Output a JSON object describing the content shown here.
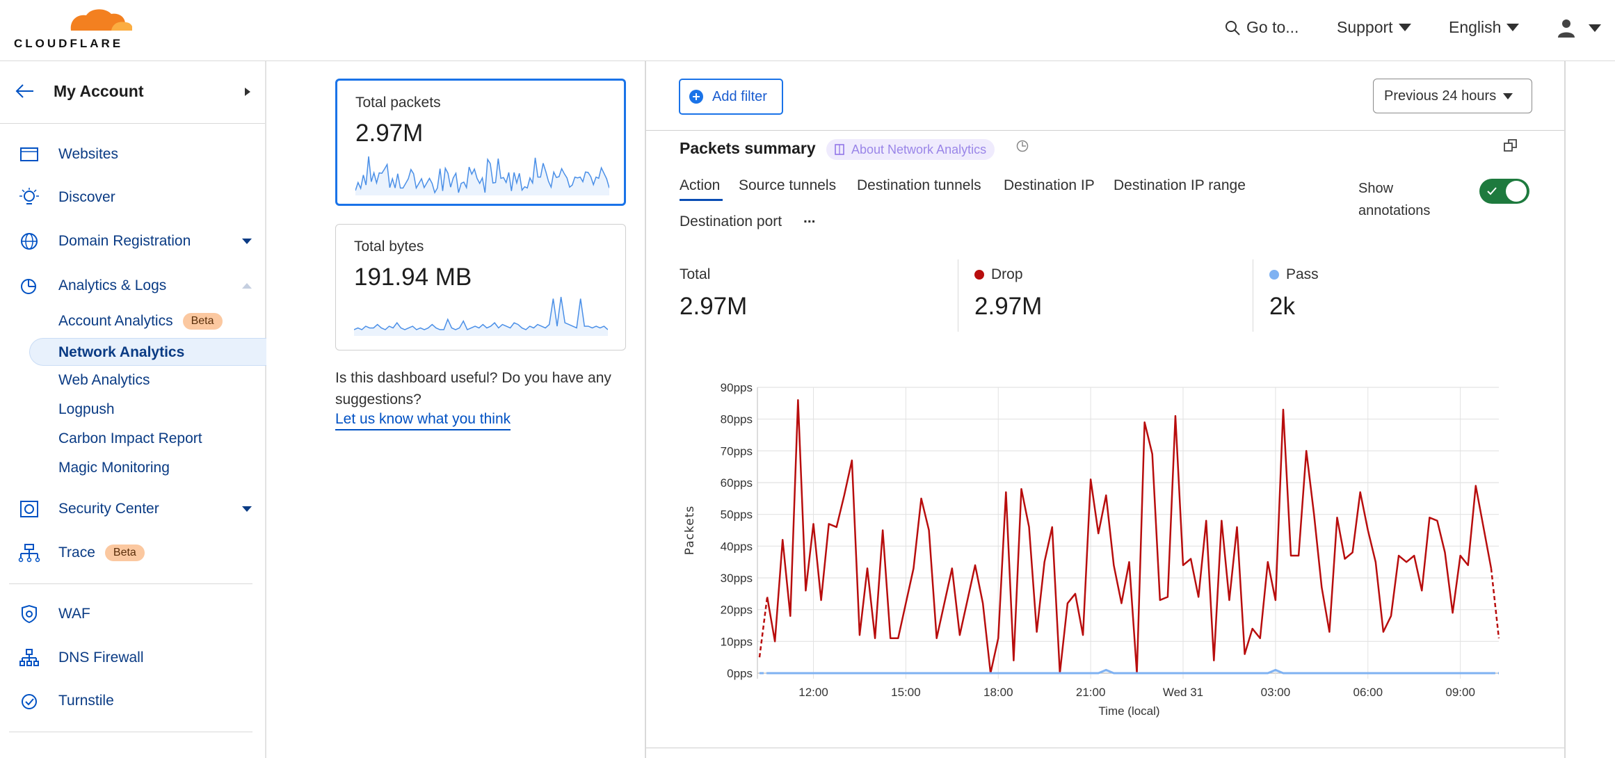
{
  "header": {
    "logo_text": "CLOUDFLARE",
    "goto_label": "Go to...",
    "support_label": "Support",
    "language_label": "English"
  },
  "sidebar": {
    "account_title": "My Account",
    "items": [
      {
        "label": "Websites",
        "icon": "browser-window-icon"
      },
      {
        "label": "Discover",
        "icon": "lightbulb-icon"
      },
      {
        "label": "Domain Registration",
        "icon": "globe-icon"
      },
      {
        "label": "Analytics & Logs",
        "icon": "pie-chart-icon"
      },
      {
        "label": "Security Center",
        "icon": "security-center-icon"
      },
      {
        "label": "Trace",
        "icon": "trace-icon",
        "badge": "Beta"
      },
      {
        "label": "WAF",
        "icon": "shield-gear-icon"
      },
      {
        "label": "DNS Firewall",
        "icon": "network-icon"
      },
      {
        "label": "Turnstile",
        "icon": "turnstile-icon"
      }
    ],
    "analytics_subitems": [
      {
        "label": "Account Analytics",
        "badge": "Beta"
      },
      {
        "label": "Network Analytics",
        "active": true
      },
      {
        "label": "Web Analytics"
      },
      {
        "label": "Logpush"
      },
      {
        "label": "Carbon Impact Report"
      },
      {
        "label": "Magic Monitoring"
      }
    ]
  },
  "cards": {
    "packets": {
      "title": "Total packets",
      "value": "2.97M"
    },
    "bytes": {
      "title": "Total bytes",
      "value": "191.94 MB",
      "sparkline": [
        2,
        3,
        2,
        4,
        3,
        3,
        5,
        3,
        2,
        4,
        3,
        6,
        3,
        2,
        3,
        4,
        2,
        3,
        2,
        3,
        5,
        3,
        2,
        2,
        8,
        3,
        2,
        3,
        7,
        2,
        3,
        4,
        3,
        5,
        3,
        4,
        6,
        3,
        5,
        4,
        3,
        6,
        5,
        3,
        2,
        4,
        3,
        5,
        4,
        3,
        5,
        20,
        4,
        21,
        6,
        5,
        4,
        3,
        20,
        4,
        4,
        3,
        4,
        3,
        4,
        2
      ]
    },
    "feedback_text": "Is this dashboard useful? Do you have any suggestions?",
    "feedback_link": "Let us know what you think"
  },
  "main": {
    "add_filter_label": "Add filter",
    "time_range": "Previous 24 hours",
    "section_title": "Packets summary",
    "about_label": "About Network Analytics",
    "tabs": [
      "Action",
      "Source tunnels",
      "Destination tunnels",
      "Destination IP",
      "Destination IP range",
      "Destination port"
    ],
    "active_tab": "Action",
    "more_label": "...",
    "annotations_label_1": "Show",
    "annotations_label_2": "annotations",
    "annotations_on": true,
    "stats": [
      {
        "label": "Total",
        "value": "2.97M"
      },
      {
        "label": "Drop",
        "value": "2.97M",
        "color": "#b80d0d"
      },
      {
        "label": "Pass",
        "value": "2k",
        "color": "#7fb2f2"
      }
    ]
  },
  "chart_data": {
    "type": "line",
    "xlabel": "Time (local)",
    "ylabel": "Packets",
    "ylim": [
      0,
      90
    ],
    "y_ticks": [
      "0pps",
      "10pps",
      "20pps",
      "30pps",
      "40pps",
      "50pps",
      "60pps",
      "70pps",
      "80pps",
      "90pps"
    ],
    "x_ticks": [
      {
        "time": "12:00",
        "label": "12:00"
      },
      {
        "time": "15:00",
        "label": "15:00"
      },
      {
        "time": "18:00",
        "label": "18:00"
      },
      {
        "time": "21:00",
        "label": "21:00"
      },
      {
        "time": "00:00",
        "label": "Wed 31"
      },
      {
        "time": "03:00",
        "label": "03:00"
      },
      {
        "time": "06:00",
        "label": "06:00"
      },
      {
        "time": "09:00",
        "label": "09:00"
      }
    ],
    "grid": true,
    "x": [
      "10:15",
      "10:30",
      "10:45",
      "11:00",
      "11:15",
      "11:30",
      "11:45",
      "12:00",
      "12:15",
      "12:30",
      "12:45",
      "13:00",
      "13:15",
      "13:30",
      "13:45",
      "14:00",
      "14:15",
      "14:30",
      "14:45",
      "15:00",
      "15:15",
      "15:30",
      "15:45",
      "16:00",
      "16:15",
      "16:30",
      "16:45",
      "17:00",
      "17:15",
      "17:30",
      "17:45",
      "18:00",
      "18:15",
      "18:30",
      "18:45",
      "19:00",
      "19:15",
      "19:30",
      "19:45",
      "20:00",
      "20:15",
      "20:30",
      "20:45",
      "21:00",
      "21:15",
      "21:30",
      "21:45",
      "22:00",
      "22:15",
      "22:30",
      "22:45",
      "23:00",
      "23:15",
      "23:30",
      "23:45",
      "00:00",
      "00:15",
      "00:30",
      "00:45",
      "01:00",
      "01:15",
      "01:30",
      "01:45",
      "02:00",
      "02:15",
      "02:30",
      "02:45",
      "03:00",
      "03:15",
      "03:30",
      "03:45",
      "04:00",
      "04:15",
      "04:30",
      "04:45",
      "05:00",
      "05:15",
      "05:30",
      "05:45",
      "06:00",
      "06:15",
      "06:30",
      "06:45",
      "07:00",
      "07:15",
      "07:30",
      "07:45",
      "08:00",
      "08:15",
      "08:30",
      "08:45",
      "09:00",
      "09:15",
      "09:30",
      "09:45",
      "10:00",
      "10:15"
    ],
    "series": [
      {
        "name": "Drop",
        "color": "#b80d0d",
        "values": [
          5,
          24,
          10,
          42,
          18,
          86,
          26,
          47,
          23,
          47,
          46,
          56,
          67,
          12,
          33,
          11,
          45,
          11,
          11,
          22,
          33,
          55,
          45,
          11,
          22,
          33,
          12,
          23,
          34,
          22,
          0,
          11,
          57,
          4,
          58,
          46,
          13,
          35,
          46,
          0,
          22,
          25,
          12,
          61,
          44,
          56,
          34,
          22,
          35,
          0,
          79,
          69,
          23,
          24,
          81,
          34,
          36,
          24,
          48,
          4,
          48,
          23,
          46,
          6,
          14,
          11,
          35,
          23,
          83,
          37,
          37,
          70,
          50,
          27,
          13,
          49,
          36,
          38,
          57,
          45,
          35,
          13,
          18,
          37,
          35,
          37,
          26,
          49,
          48,
          38,
          19,
          37,
          34,
          59,
          46,
          33,
          11
        ]
      },
      {
        "name": "Pass",
        "color": "#7fb2f2",
        "values": [
          0,
          0,
          0,
          0,
          0,
          0,
          0,
          0,
          0,
          0,
          0,
          0,
          0,
          0,
          0,
          0,
          0,
          0,
          0,
          0,
          0,
          0,
          0,
          0,
          0,
          0,
          0,
          0,
          0,
          0,
          0,
          0,
          0,
          0,
          0,
          0,
          0,
          0,
          0,
          0,
          0,
          0,
          0,
          0,
          0,
          1,
          0,
          0,
          0,
          0,
          0,
          0,
          0,
          0,
          0,
          0,
          0,
          0,
          0,
          0,
          0,
          0,
          0,
          0,
          0,
          0,
          0,
          1,
          0,
          0,
          0,
          0,
          0,
          0,
          0,
          0,
          0,
          0,
          0,
          0,
          0,
          0,
          0,
          0,
          0,
          0,
          0,
          0,
          0,
          0,
          0,
          0,
          0,
          0,
          0,
          0,
          0
        ]
      }
    ]
  }
}
